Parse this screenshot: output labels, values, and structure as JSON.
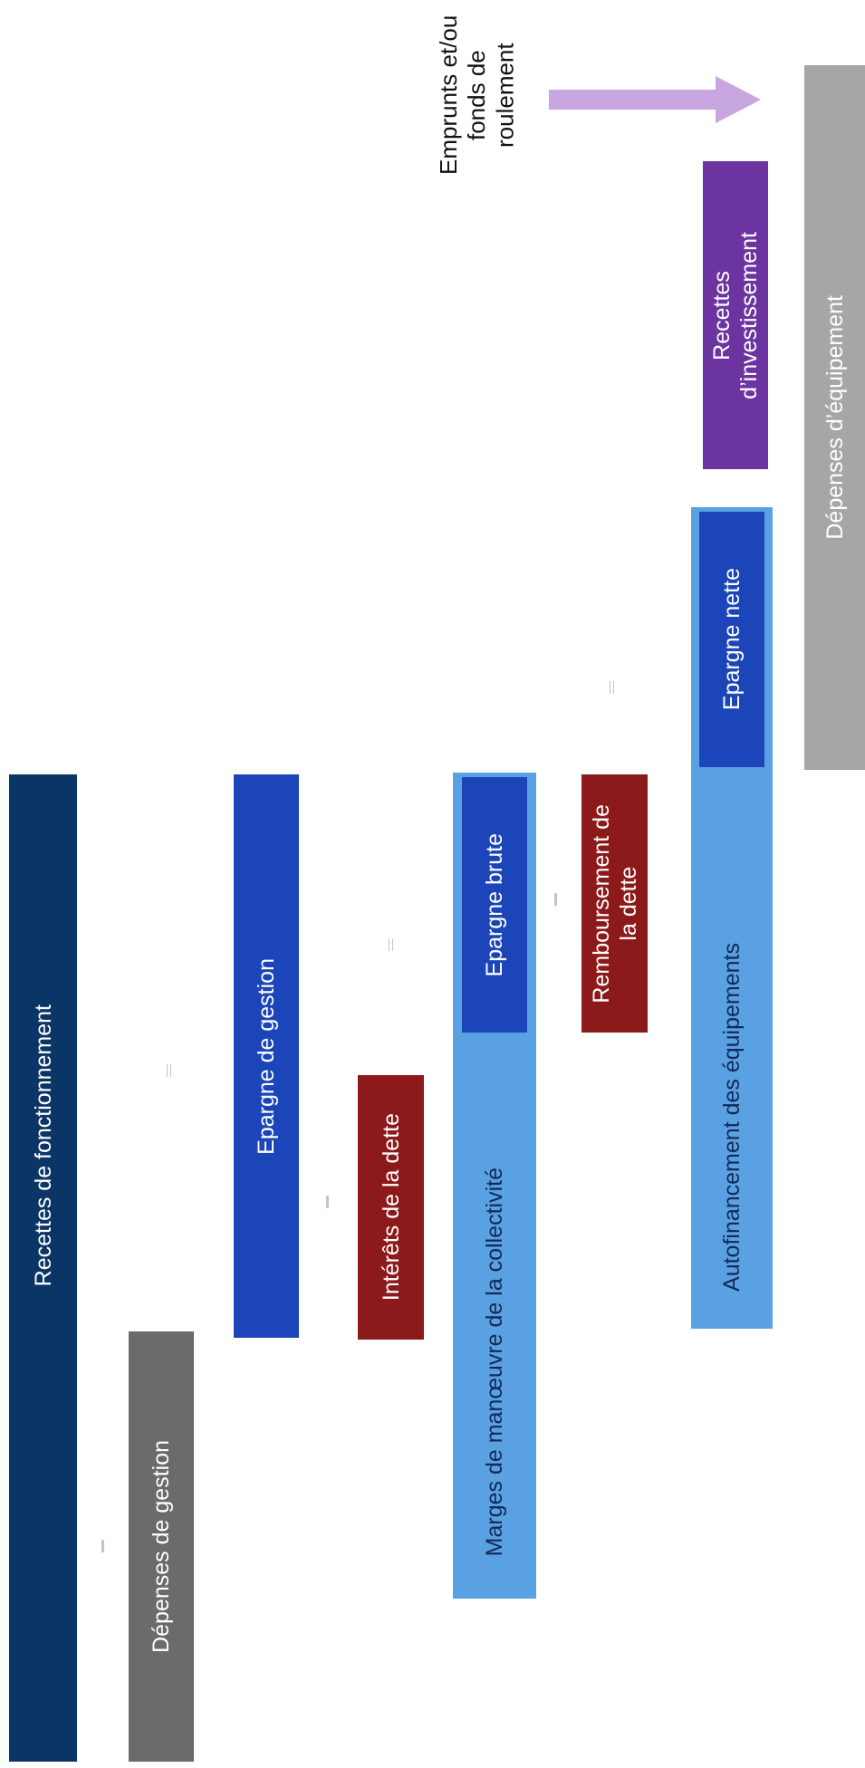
{
  "colors": {
    "dark_navy": "#0c3567",
    "dark_grey": "#6b6b6b",
    "royal_blue": "#1b45b8",
    "dark_red": "#8c1a1a",
    "light_blue": "#5aa1e3",
    "purple": "#6b34a0",
    "light_grey": "#a6a6a6"
  },
  "blocks": {
    "recettes_fonctionnement": "Recettes de fonctionnement",
    "depenses_gestion": "Dépenses de gestion",
    "epargne_gestion": "Epargne de gestion",
    "interets_dette": "Intérêts de la dette",
    "marges_manoeuvre": "Marges de manœuvre de la collectivité",
    "epargne_brute": "Epargne brute",
    "remboursement_dette": "Remboursement de\nla dette",
    "autofinancement": "Autofinancement des équipements",
    "epargne_nette": "Epargne nette",
    "recettes_investissement": "Recettes\nd’investissement",
    "depenses_equipement": "Dépenses d’équipement"
  },
  "annotation": {
    "emprunts": "Emprunts et/ou\nfonds de\nroulement"
  }
}
